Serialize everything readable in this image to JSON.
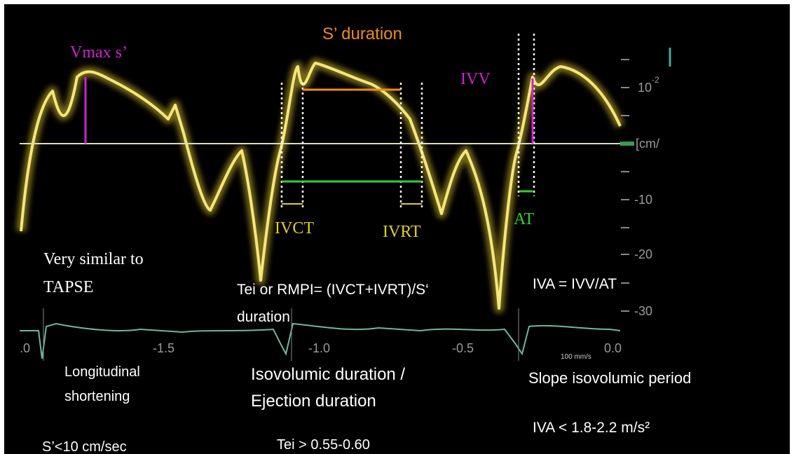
{
  "labels": {
    "s_duration": "S’ duration",
    "vmax": "Vmax s’",
    "ivv": "IVV",
    "ivct": "IVCT",
    "ivrt": "IVRT",
    "at": "AT"
  },
  "scale": {
    "y_labels": [
      "10",
      "-10",
      "-20",
      "-30"
    ],
    "y_exponent": "-2",
    "y_unit": "[cm/",
    "x_labels": [
      ".0",
      "-1.5",
      "-1.0",
      "-0.5",
      "0.0"
    ],
    "sweep": "100 mm/s"
  },
  "notes": {
    "tapse": [
      "Very similar to",
      "TAPSE"
    ],
    "tei": [
      "Tei or RMPI= (IVCT+IVRT)/S‘",
      "duration"
    ],
    "iva": "IVA = IVV/AT",
    "longitudinal": [
      "Longitudinal",
      "shortening"
    ],
    "isovolumic": [
      "Isovolumic duration /",
      "Ejection duration"
    ],
    "slope": "Slope isovolumic  period",
    "iva_limit": "IVA < 1.8-2.2 m/s²",
    "s_limit": "S’<10 cm/sec",
    "tei_limit": "Tei > 0.55-0.60"
  }
}
